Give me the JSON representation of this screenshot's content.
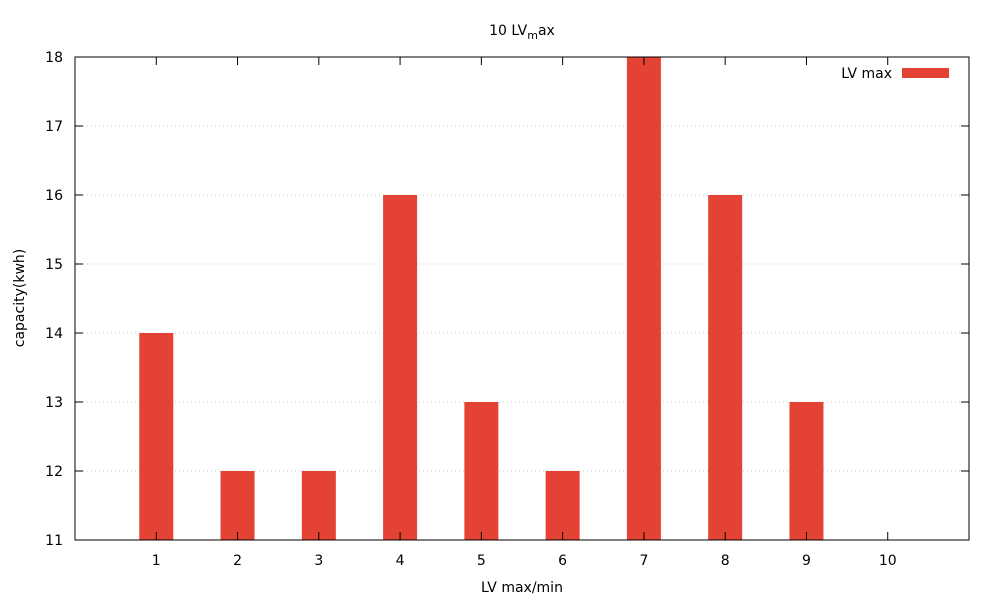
{
  "chart_data": {
    "type": "bar",
    "title_main": "10 LV",
    "title_sub": "m",
    "title_tail": "ax",
    "xlabel": "LV max/min",
    "ylabel": "capacity(kwh)",
    "categories": [
      "1",
      "2",
      "3",
      "4",
      "5",
      "6",
      "7",
      "8",
      "9",
      "10"
    ],
    "series": [
      {
        "name": "LV max",
        "color": "#e34234",
        "values": [
          14,
          12,
          12,
          16,
          13,
          12,
          18,
          16,
          13,
          null
        ]
      }
    ],
    "ylim": [
      11,
      18
    ],
    "yticks": [
      "11",
      "12",
      "13",
      "14",
      "15",
      "16",
      "17",
      "18"
    ],
    "xlim": [
      -1,
      10
    ],
    "grid": "horizontal dotted",
    "legend_position": "top-right"
  }
}
